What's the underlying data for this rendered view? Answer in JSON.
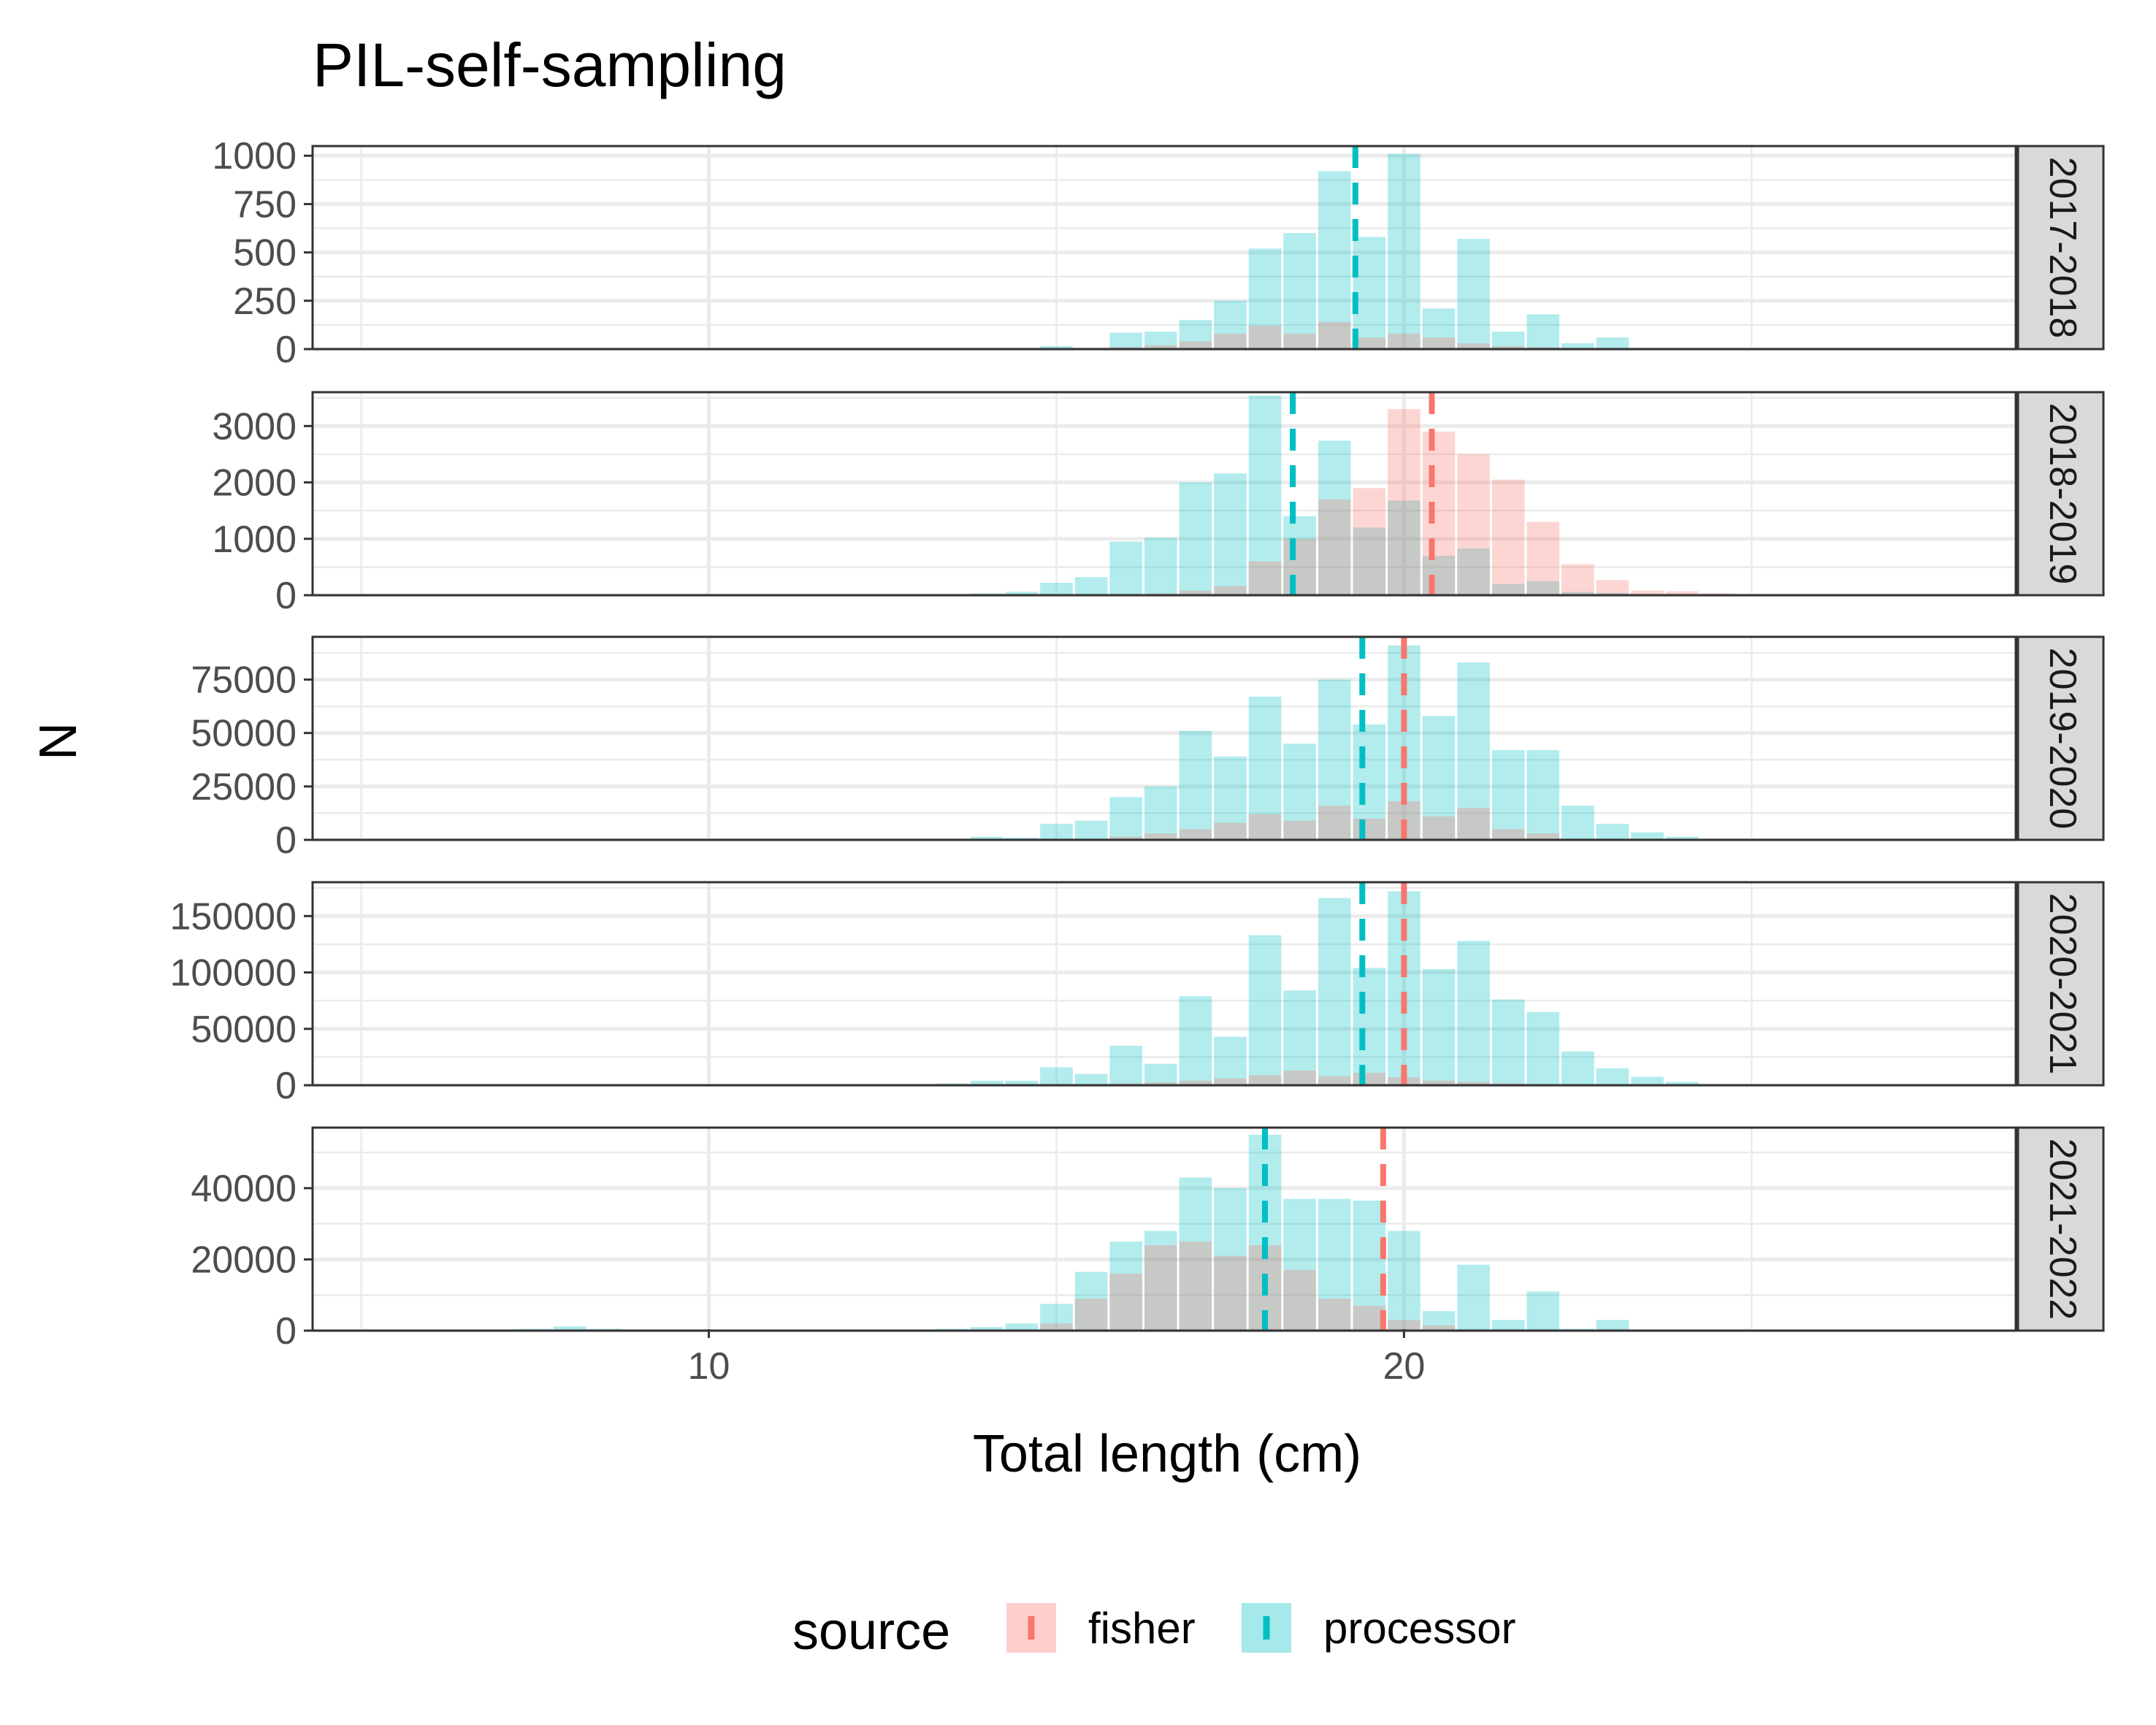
{
  "chart_data": {
    "type": "bar",
    "title": "PIL-self-sampling",
    "xlabel": "Total length (cm)",
    "ylabel": "N",
    "xlim": [
      4.3,
      28.8
    ],
    "x_ticks": [
      10,
      20
    ],
    "legend": {
      "title": "source",
      "position": "bottom",
      "entries": [
        "fisher",
        "processor"
      ]
    },
    "colors": {
      "fisher": "#F8766D",
      "processor": "#00BFC4"
    },
    "bin_width": 0.5,
    "panels": [
      {
        "label": "2017-2018",
        "ylim": [
          0,
          1050
        ],
        "y_ticks": [
          0,
          250,
          500,
          750,
          1000
        ],
        "mean": {
          "fisher": null,
          "processor": 19.3
        },
        "series": [
          {
            "name": "processor",
            "x": [
              15,
              15.5,
              16,
              16.5,
              17,
              17.5,
              18,
              18.5,
              19,
              19.5,
              20,
              20.5,
              21,
              21.5,
              22,
              22.5,
              23,
              23.5,
              24
            ],
            "values": [
              15,
              5,
              85,
              90,
              150,
              250,
              520,
              600,
              920,
              580,
              1010,
              210,
              570,
              90,
              180,
              30,
              60,
              5,
              5
            ]
          },
          {
            "name": "fisher",
            "x": [
              16,
              16.5,
              17,
              17.5,
              18,
              18.5,
              19,
              19.5,
              20,
              20.5,
              21,
              21.5,
              22
            ],
            "values": [
              10,
              20,
              40,
              80,
              120,
              80,
              140,
              60,
              80,
              60,
              30,
              15,
              10
            ]
          }
        ]
      },
      {
        "label": "2018-2019",
        "ylim": [
          0,
          3600
        ],
        "y_ticks": [
          0,
          1000,
          2000,
          3000
        ],
        "mean": {
          "fisher": 20.4,
          "processor": 18.4
        },
        "series": [
          {
            "name": "processor",
            "x": [
              14,
              14.5,
              15,
              15.5,
              16,
              16.5,
              17,
              17.5,
              18,
              18.5,
              19,
              19.5,
              20,
              20.5,
              21,
              21.5,
              22,
              22.5,
              23
            ],
            "values": [
              30,
              60,
              220,
              320,
              950,
              1020,
              2000,
              2160,
              3540,
              1400,
              2740,
              1200,
              1680,
              700,
              830,
              200,
              250,
              60,
              40
            ]
          },
          {
            "name": "fisher",
            "x": [
              16.5,
              17,
              17.5,
              18,
              18.5,
              19,
              19.5,
              20,
              20.5,
              21,
              21.5,
              22,
              22.5,
              23,
              23.5,
              24,
              24.5,
              25
            ],
            "values": [
              30,
              80,
              160,
              600,
              1000,
              1700,
              1900,
              3300,
              2900,
              2500,
              2050,
              1300,
              550,
              270,
              80,
              70,
              30,
              10
            ]
          }
        ]
      },
      {
        "label": "2019-2020",
        "ylim": [
          0,
          95000
        ],
        "y_ticks": [
          0,
          25000,
          50000,
          75000
        ],
        "mean": {
          "fisher": 20.0,
          "processor": 19.4
        },
        "series": [
          {
            "name": "processor",
            "x": [
              14,
              14.5,
              15,
              15.5,
              16,
              16.5,
              17,
              17.5,
              18,
              18.5,
              19,
              19.5,
              20,
              20.5,
              21,
              21.5,
              22,
              22.5,
              23,
              23.5,
              24
            ],
            "values": [
              1500,
              1000,
              7500,
              9000,
              20000,
              25000,
              51000,
              39000,
              67000,
              45000,
              75000,
              54000,
              91000,
              58000,
              83000,
              42000,
              42000,
              16000,
              7500,
              3500,
              1500
            ]
          },
          {
            "name": "fisher",
            "x": [
              15.5,
              16,
              16.5,
              17,
              17.5,
              18,
              18.5,
              19,
              19.5,
              20,
              20.5,
              21,
              21.5,
              22
            ],
            "values": [
              500,
              1500,
              3000,
              5000,
              8000,
              12000,
              9000,
              16000,
              10000,
              18000,
              11000,
              15000,
              5000,
              3000
            ]
          }
        ]
      },
      {
        "label": "2020-2021",
        "ylim": [
          0,
          180000
        ],
        "y_ticks": [
          0,
          50000,
          100000,
          150000
        ],
        "mean": {
          "fisher": 20.0,
          "processor": 19.4
        },
        "series": [
          {
            "name": "processor",
            "x": [
              13,
              13.5,
              14,
              14.5,
              15,
              15.5,
              16,
              16.5,
              17,
              17.5,
              18,
              18.5,
              19,
              19.5,
              20,
              20.5,
              21,
              21.5,
              22,
              22.5,
              23,
              23.5,
              24,
              24.5,
              25
            ],
            "values": [
              1000,
              1500,
              4000,
              4000,
              16000,
              10000,
              35000,
              19000,
              79000,
              43000,
              133000,
              84000,
              166000,
              104000,
              172000,
              103000,
              128000,
              76000,
              65000,
              30000,
              15000,
              7500,
              3000,
              1000,
              500
            ]
          },
          {
            "name": "fisher",
            "x": [
              16,
              16.5,
              17,
              17.5,
              18,
              18.5,
              19,
              19.5,
              20,
              20.5,
              21,
              21.5
            ],
            "values": [
              1500,
              2500,
              4000,
              6000,
              9000,
              13000,
              8000,
              11000,
              7000,
              4000,
              3000,
              1500
            ]
          }
        ]
      },
      {
        "label": "2021-2022",
        "ylim": [
          0,
          57000
        ],
        "y_ticks": [
          0,
          20000,
          40000
        ],
        "mean": {
          "fisher": 19.7,
          "processor": 18.0
        },
        "series": [
          {
            "name": "processor",
            "x": [
              7.5,
              8,
              8.5,
              13,
              13.5,
              14,
              14.5,
              15,
              15.5,
              16,
              16.5,
              17,
              17.5,
              18,
              18.5,
              19,
              19.5,
              20,
              20.5,
              21,
              21.5,
              22,
              22.5,
              23,
              23.5,
              24
            ],
            "values": [
              500,
              1200,
              500,
              300,
              500,
              1000,
              2000,
              7500,
              16500,
              25000,
              28000,
              43000,
              40000,
              55000,
              37000,
              37000,
              36500,
              28000,
              5500,
              18500,
              3000,
              11000,
              500,
              3000,
              300,
              300
            ]
          },
          {
            "name": "fisher",
            "x": [
              15,
              15.5,
              16,
              16.5,
              17,
              17.5,
              18,
              18.5,
              19,
              19.5,
              20,
              20.5
            ],
            "values": [
              2000,
              9000,
              16000,
              24000,
              25000,
              21000,
              24000,
              17000,
              9000,
              7000,
              3000,
              1500
            ]
          }
        ]
      }
    ]
  }
}
